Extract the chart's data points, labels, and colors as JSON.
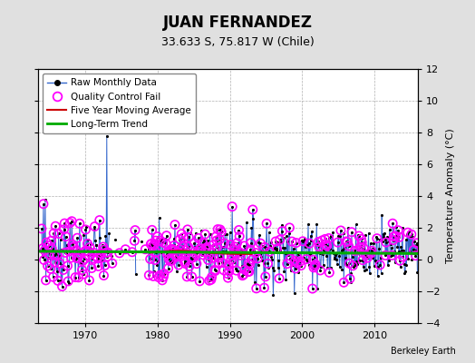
{
  "title": "JUAN FERNANDEZ",
  "subtitle": "33.633 S, 75.817 W (Chile)",
  "ylabel_right": "Temperature Anomaly (°C)",
  "credit": "Berkeley Earth",
  "xlim": [
    1963.5,
    2016
  ],
  "ylim": [
    -4,
    12
  ],
  "yticks": [
    -4,
    -2,
    0,
    2,
    4,
    6,
    8,
    10,
    12
  ],
  "xticks": [
    1970,
    1980,
    1990,
    2000,
    2010
  ],
  "bg_color": "#e0e0e0",
  "plot_bg_color": "#ffffff",
  "grid_color": "#b0b0b0",
  "raw_line_color": "#3366cc",
  "raw_dot_color": "#000000",
  "qc_fail_color": "#ff00ff",
  "moving_avg_color": "#cc0000",
  "trend_color": "#00aa00",
  "trend_x": [
    1963.5,
    2016.0
  ],
  "trend_y": [
    0.52,
    0.38
  ],
  "title_fontsize": 12,
  "subtitle_fontsize": 9,
  "legend_fontsize": 7.5,
  "tick_fontsize": 8,
  "ylabel_fontsize": 8
}
